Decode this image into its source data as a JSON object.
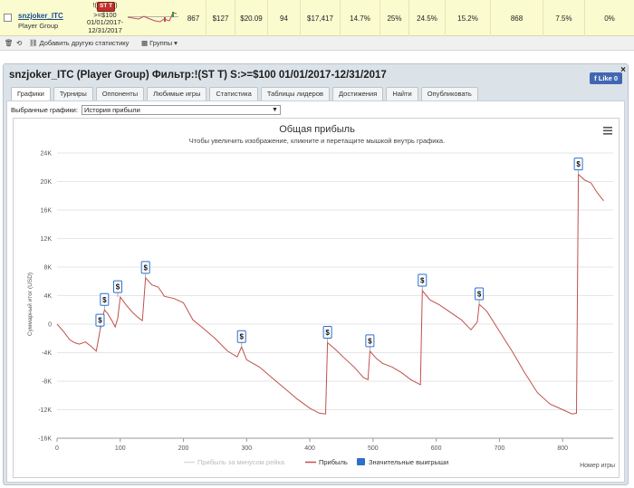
{
  "row": {
    "player_name": "snzjoker_ITC",
    "group": "Player Group",
    "filter_badge": "ST T",
    "filter_lines": [
      ">=$100",
      "01/01/2017-",
      "12/31/2017"
    ],
    "cells": [
      "867",
      "$127",
      "$20.09",
      "94",
      "$17,417",
      "14.7%",
      "25%",
      "24.5%",
      "15.2%",
      "868",
      "7.5%",
      "0%"
    ]
  },
  "toolbar": {
    "add_label": "Добавить другую статистику",
    "groups_label": "Группы"
  },
  "panel": {
    "title": "snzjoker_ITC (Player Group) Фильтр:!(ST T) S:>=$100 01/01/2017-12/31/2017",
    "like_label": "Like 0",
    "close": "×",
    "tabs": [
      "Графики",
      "Турниры",
      "Оппоненты",
      "Любимые игры",
      "Статистика",
      "Таблицы лидеров",
      "Достижения",
      "Найти",
      "Опубликовать"
    ],
    "select_label": "Выбранные графики:",
    "select_value": "История прибыли"
  },
  "chart_data": {
    "type": "line",
    "title": "Общая прибыль",
    "subtitle": "Чтобы увеличить изображение, кликните и перетащите мышкой внутрь графика.",
    "ylabel": "Суммарный итог (USD)",
    "xlabel": "Номер игры",
    "ylim": [
      -16000,
      24000
    ],
    "xlim": [
      0,
      880
    ],
    "yticks": [
      "24K",
      "20K",
      "16K",
      "12K",
      "8K",
      "4K",
      "0",
      "-4K",
      "-8K",
      "-12K",
      "-16K"
    ],
    "ytick_values": [
      24000,
      20000,
      16000,
      12000,
      8000,
      4000,
      0,
      -4000,
      -8000,
      -12000,
      -16000
    ],
    "xticks": [
      0,
      100,
      200,
      300,
      400,
      500,
      600,
      700,
      800
    ],
    "legend": [
      "Прибыль за минусом рейка",
      "Прибыль",
      "Значительные выигрыши"
    ],
    "colors": {
      "profit": "#c0504d",
      "rake": "#dddddd",
      "marker": "#2e6fcd"
    },
    "series": [
      {
        "name": "Прибыль",
        "x": [
          0,
          10,
          20,
          28,
          35,
          45,
          55,
          62,
          68,
          75,
          80,
          88,
          92,
          96,
          100,
          110,
          120,
          130,
          135,
          140,
          150,
          160,
          170,
          185,
          200,
          215,
          230,
          250,
          270,
          285,
          292,
          300,
          320,
          340,
          360,
          380,
          400,
          415,
          425,
          428,
          440,
          455,
          470,
          485,
          492,
          495,
          505,
          515,
          530,
          545,
          560,
          575,
          578,
          590,
          605,
          620,
          640,
          655,
          665,
          668,
          680,
          700,
          720,
          740,
          760,
          780,
          800,
          815,
          822,
          825,
          835,
          845,
          855,
          865
        ],
        "y": [
          0,
          -1000,
          -2200,
          -2600,
          -2800,
          -2500,
          -3200,
          -3800,
          -900,
          2000,
          1500,
          300,
          -400,
          800,
          3800,
          2600,
          1600,
          800,
          500,
          6500,
          5500,
          5200,
          3900,
          3600,
          3000,
          600,
          -500,
          -2000,
          -3800,
          -4600,
          -3200,
          -5000,
          -6000,
          -7500,
          -9000,
          -10500,
          -11800,
          -12500,
          -12600,
          -2600,
          -3500,
          -4800,
          -6000,
          -7500,
          -7800,
          -3800,
          -4800,
          -5500,
          -6000,
          -6800,
          -7800,
          -8500,
          4700,
          3400,
          2700,
          1800,
          600,
          -800,
          300,
          2800,
          1800,
          -1000,
          -3800,
          -6800,
          -9600,
          -11200,
          -12000,
          -12600,
          -12500,
          21000,
          20200,
          19800,
          18400,
          17300
        ]
      },
      {
        "name": "Значительные выигрыши",
        "x": [
          68,
          75,
          96,
          140,
          292,
          428,
          495,
          578,
          668,
          825
        ],
        "y": [
          -900,
          2000,
          3800,
          6500,
          -3200,
          -2600,
          -3800,
          4700,
          2800,
          21000
        ],
        "label": "$"
      }
    ]
  }
}
